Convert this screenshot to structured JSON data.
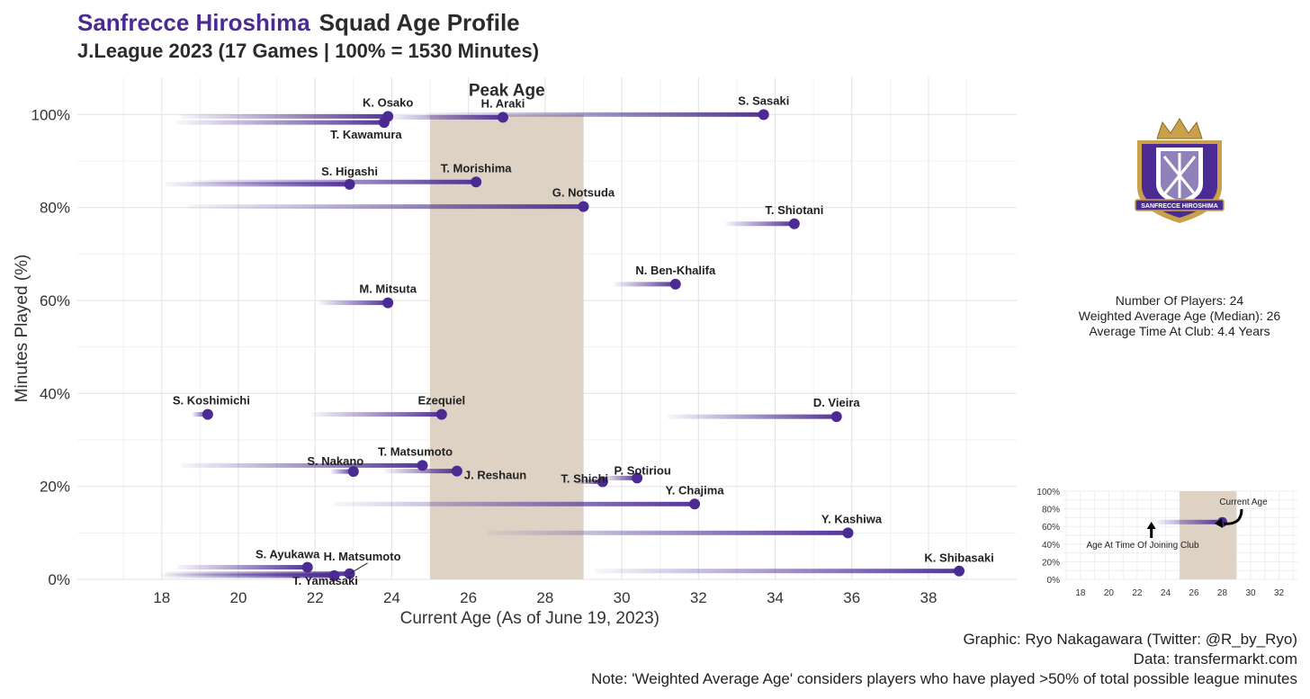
{
  "header": {
    "club_name": "Sanfrecce Hiroshima",
    "title_rest": "Squad Age Profile",
    "subtitle": "J.League 2023 (17 Games | 100% = 1530 Minutes)"
  },
  "colors": {
    "accent": "#4b2b93",
    "peak_band": "#ddd2c4",
    "grid": "#e6e6e6"
  },
  "chart_data": {
    "type": "scatter",
    "xlabel": "Current Age (As of June 19, 2023)",
    "ylabel": "Minutes Played (%)",
    "xlim": [
      15.8,
      40.3
    ],
    "ylim": [
      0,
      108
    ],
    "x_ticks": [
      18,
      20,
      22,
      24,
      26,
      28,
      30,
      32,
      34,
      36,
      38
    ],
    "y_ticks": [
      0,
      20,
      40,
      60,
      80,
      100
    ],
    "y_tick_labels": [
      "0%",
      "20%",
      "40%",
      "60%",
      "80%",
      "100%"
    ],
    "peak_age": {
      "label": "Peak Age",
      "from": 25,
      "to": 29
    },
    "grid": true,
    "players": [
      {
        "name": "K. Osako",
        "age": 23.9,
        "minutes_pct": 99.6,
        "joined_age": 18.5
      },
      {
        "name": "T. Kawamura",
        "age": 23.8,
        "minutes_pct": 98.3,
        "joined_age": 18.4
      },
      {
        "name": "H. Araki",
        "age": 26.9,
        "minutes_pct": 99.4,
        "joined_age": 23.9
      },
      {
        "name": "S. Sasaki",
        "age": 33.7,
        "minutes_pct": 100,
        "joined_age": 24.9
      },
      {
        "name": "S. Higashi",
        "age": 22.9,
        "minutes_pct": 85.0,
        "joined_age": 18.1
      },
      {
        "name": "T. Morishima",
        "age": 26.2,
        "minutes_pct": 85.5,
        "joined_age": 18.8
      },
      {
        "name": "G. Notsuda",
        "age": 29.0,
        "minutes_pct": 80.2,
        "joined_age": 18.7
      },
      {
        "name": "T. Shiotani",
        "age": 34.5,
        "minutes_pct": 76.5,
        "joined_age": 32.7
      },
      {
        "name": "N. Ben-Khalifa",
        "age": 31.4,
        "minutes_pct": 63.5,
        "joined_age": 29.8
      },
      {
        "name": "M. Mitsuta",
        "age": 23.9,
        "minutes_pct": 59.5,
        "joined_age": 22.1
      },
      {
        "name": "S. Koshimichi",
        "age": 19.2,
        "minutes_pct": 35.5,
        "joined_age": 18.8
      },
      {
        "name": "Ezequiel",
        "age": 25.3,
        "minutes_pct": 35.5,
        "joined_age": 21.9
      },
      {
        "name": "D. Vieira",
        "age": 35.6,
        "minutes_pct": 35.0,
        "joined_age": 31.2
      },
      {
        "name": "T. Matsumoto",
        "age": 24.8,
        "minutes_pct": 24.5,
        "joined_age": 18.5
      },
      {
        "name": "S. Nakano",
        "age": 23.0,
        "minutes_pct": 23.2,
        "joined_age": 22.4
      },
      {
        "name": "J. Reshaun",
        "age": 25.7,
        "minutes_pct": 23.3,
        "joined_age": 23.8
      },
      {
        "name": "T. Shichi",
        "age": 29.5,
        "minutes_pct": 21.0,
        "joined_age": 28.8
      },
      {
        "name": "P. Sotiriou",
        "age": 30.4,
        "minutes_pct": 21.8,
        "joined_age": 29.5
      },
      {
        "name": "Y. Chajima",
        "age": 31.9,
        "minutes_pct": 16.2,
        "joined_age": 22.5
      },
      {
        "name": "Y. Kashiwa",
        "age": 35.9,
        "minutes_pct": 10.0,
        "joined_age": 26.5
      },
      {
        "name": "S. Ayukawa",
        "age": 21.8,
        "minutes_pct": 2.6,
        "joined_age": 18.4
      },
      {
        "name": "H. Matsumoto",
        "age": 22.9,
        "minutes_pct": 1.2,
        "joined_age": 18.1
      },
      {
        "name": "T. Yamasaki",
        "age": 22.5,
        "minutes_pct": 0.8,
        "joined_age": 18.0
      },
      {
        "name": "K. Shibasaki",
        "age": 38.8,
        "minutes_pct": 1.8,
        "joined_age": 29.3
      }
    ]
  },
  "stats": {
    "players": "Number Of Players: 24",
    "weighted_age": "Weighted Average Age (Median): 26",
    "time_at_club": "Average Time At Club: 4.4 Years"
  },
  "logo": {
    "text": "SANFRECCE HIROSHIMA",
    "icon": "crest-icon"
  },
  "inset": {
    "x_ticks": [
      18,
      20,
      22,
      24,
      26,
      28,
      30,
      32
    ],
    "y_tick_labels": [
      "0%",
      "20%",
      "40%",
      "60%",
      "80%",
      "100%"
    ],
    "peak_from": 25,
    "peak_to": 29,
    "example_age": 28,
    "example_pct": 65,
    "example_joined": 23,
    "label_current": "Current Age",
    "label_joined": "Age At Time Of Joining Club"
  },
  "caption": {
    "line1": "Graphic: Ryo Nakagawara (Twitter: @R_by_Ryo)",
    "line2": "Data: transfermarkt.com",
    "line3": "Note: 'Weighted Average Age' considers players who have played >50% of total possible league minutes"
  }
}
